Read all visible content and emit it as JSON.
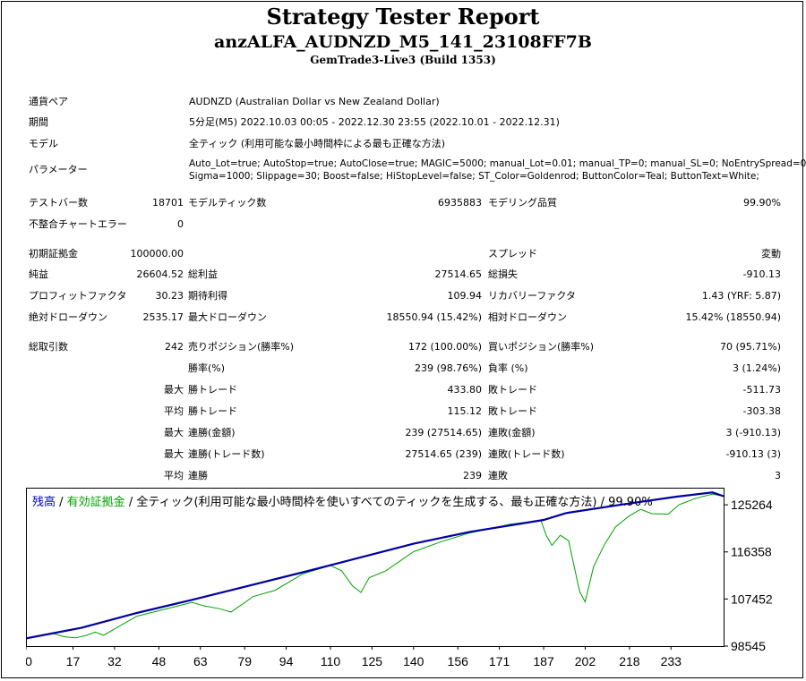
{
  "header": {
    "title": "Strategy Tester Report",
    "subtitle": "anzALFA_AUDNZD_M5_141_23108FF7B",
    "build": "GemTrade3-Live3 (Build 1353)"
  },
  "info": {
    "pair_label": "通貨ペア",
    "pair_value": "AUDNZD (Australian Dollar vs New Zealand Dollar)",
    "period_label": "期間",
    "period_value": "5分足(M5) 2022.10.03 00:05 - 2022.12.30 23:55 (2022.10.01 - 2022.12.31)",
    "model_label": "モデル",
    "model_value": "全ティック (利用可能な最小時間枠による最も正確な方法)",
    "params_label": "パラメーター",
    "params_line1": "Auto_Lot=true; AutoStop=true; AutoClose=true; MAGIC=5000; manual_Lot=0.01; manual_TP=0; manual_SL=0; NoEntrySpread=0;",
    "params_line2": "Sigma=1000; Slippage=30; Boost=false; HiStopLevel=false; ST_Color=Goldenrod; ButtonColor=Teal; ButtonText=White;"
  },
  "stats": {
    "bars_label": "テストバー数",
    "bars_value": "18701",
    "ticks_label": "モデルティック数",
    "ticks_value": "6935883",
    "quality_label": "モデリング品質",
    "quality_value": "99.90%",
    "errors_label": "不整合チャートエラー",
    "errors_value": "0",
    "deposit_label": "初期証拠金",
    "deposit_value": "100000.00",
    "spread_label": "スプレッド",
    "spread_value": "変動",
    "net_label": "純益",
    "net_value": "26604.52",
    "gross_profit_label": "総利益",
    "gross_profit_value": "27514.65",
    "gross_loss_label": "総損失",
    "gross_loss_value": "-910.13",
    "pf_label": "プロフィットファクタ",
    "pf_value": "30.23",
    "expected_label": "期待利得",
    "expected_value": "109.94",
    "recovery_label": "リカバリーファクタ",
    "recovery_value": "1.43 (YRF: 5.87)",
    "abs_dd_label": "絶対ドローダウン",
    "abs_dd_value": "2535.17",
    "max_dd_label": "最大ドローダウン",
    "max_dd_value": "18550.94 (15.42%)",
    "rel_dd_label": "相対ドローダウン",
    "rel_dd_value": "15.42% (18550.94)",
    "trades_label": "総取引数",
    "trades_value": "242",
    "short_label": "売りポジション(勝率%)",
    "short_value": "172 (100.00%)",
    "long_label": "買いポジション(勝率%)",
    "long_value": "70 (95.71%)",
    "win_label": "勝率(%)",
    "win_value": "239 (98.76%)",
    "loss_label": "負率 (%)",
    "loss_value": "3 (1.24%)",
    "max_prefix": "最大",
    "avg_prefix": "平均",
    "max_win_label": "勝トレード",
    "max_win_value": "433.80",
    "max_loss_label": "敗トレード",
    "max_loss_value": "-511.73",
    "avg_win_label": "勝トレード",
    "avg_win_value": "115.12",
    "avg_loss_label": "敗トレード",
    "avg_loss_value": "-303.38",
    "cons_win_amt_label": "連勝(金額)",
    "cons_win_amt_value": "239 (27514.65)",
    "cons_loss_amt_label": "連敗(金額)",
    "cons_loss_amt_value": "3 (-910.13)",
    "cons_win_cnt_label": "連勝(トレード数)",
    "cons_win_cnt_value": "27514.65 (239)",
    "cons_loss_cnt_label": "連敗(トレード数)",
    "cons_loss_cnt_value": "-910.13 (3)",
    "avg_cons_win_label": "連勝",
    "avg_cons_win_value": "239",
    "avg_cons_loss_label": "連敗",
    "avg_cons_loss_value": "3"
  },
  "chart_data": {
    "type": "line",
    "legend": {
      "balance": "残高",
      "slash1": " / ",
      "equity": "有効証拠金",
      "rest": " / 全ティック(利用可能な最小時間枠を使いすべてのティックを生成する、最も正確な方法) / 99.90%"
    },
    "colors": {
      "balance": "#0000a0",
      "equity": "#00a000",
      "legend_balance": "#0000c0",
      "legend_equity": "#00a000"
    },
    "x_ticks": [
      0,
      17,
      32,
      48,
      63,
      79,
      94,
      110,
      125,
      140,
      156,
      171,
      187,
      202,
      218,
      233
    ],
    "y_ticks": [
      98545,
      107452,
      116358,
      125264
    ],
    "ylim": [
      98545,
      128500
    ],
    "xlim": [
      0,
      252
    ],
    "series": [
      {
        "name": "残高",
        "points": [
          [
            0,
            100000
          ],
          [
            20,
            102000
          ],
          [
            40,
            104800
          ],
          [
            60,
            107300
          ],
          [
            80,
            109900
          ],
          [
            100,
            112500
          ],
          [
            120,
            115200
          ],
          [
            140,
            117900
          ],
          [
            160,
            120100
          ],
          [
            187,
            122400
          ],
          [
            195,
            123700
          ],
          [
            215,
            125300
          ],
          [
            235,
            126800
          ],
          [
            248,
            127600
          ],
          [
            252,
            126900
          ]
        ]
      },
      {
        "name": "有効証拠金",
        "points": [
          [
            0,
            100000
          ],
          [
            10,
            100900
          ],
          [
            14,
            100300
          ],
          [
            18,
            100100
          ],
          [
            22,
            100600
          ],
          [
            25,
            101200
          ],
          [
            28,
            100600
          ],
          [
            32,
            101800
          ],
          [
            40,
            104200
          ],
          [
            60,
            106800
          ],
          [
            64,
            106200
          ],
          [
            70,
            105600
          ],
          [
            74,
            105000
          ],
          [
            78,
            106400
          ],
          [
            82,
            107900
          ],
          [
            90,
            109100
          ],
          [
            100,
            112200
          ],
          [
            110,
            113800
          ],
          [
            114,
            112800
          ],
          [
            118,
            109900
          ],
          [
            121,
            108700
          ],
          [
            124,
            111500
          ],
          [
            130,
            112800
          ],
          [
            140,
            116400
          ],
          [
            150,
            118300
          ],
          [
            160,
            119900
          ],
          [
            175,
            121600
          ],
          [
            186,
            122300
          ],
          [
            188,
            119400
          ],
          [
            190,
            117600
          ],
          [
            193,
            119500
          ],
          [
            196,
            118500
          ],
          [
            200,
            108800
          ],
          [
            202,
            106900
          ],
          [
            205,
            113500
          ],
          [
            209,
            117800
          ],
          [
            213,
            121100
          ],
          [
            218,
            123200
          ],
          [
            222,
            124400
          ],
          [
            226,
            123600
          ],
          [
            232,
            123500
          ],
          [
            236,
            125300
          ],
          [
            242,
            126500
          ],
          [
            248,
            127300
          ],
          [
            252,
            126900
          ]
        ]
      }
    ]
  }
}
